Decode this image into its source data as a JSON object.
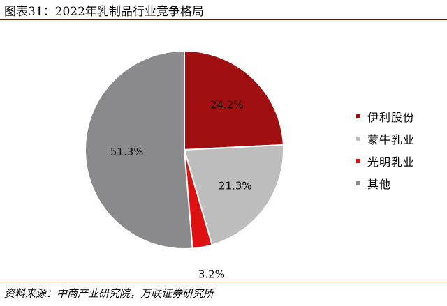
{
  "header": {
    "title": "图表31：2022年乳制品行业竞争格局"
  },
  "footer": {
    "source": "资料来源：中商产业研究院，万联证券研究所"
  },
  "chart_data": {
    "type": "pie",
    "title": "",
    "series": [
      {
        "name": "伊利股份",
        "value": 24.2,
        "label": "24.2%",
        "color": "#a01010"
      },
      {
        "name": "蒙牛乳业",
        "value": 21.3,
        "label": "21.3%",
        "color": "#bdbdbd"
      },
      {
        "name": "光明乳业",
        "value": 3.2,
        "label": "3.2%",
        "color": "#dd1111"
      },
      {
        "name": "其他",
        "value": 51.3,
        "label": "51.3%",
        "color": "#8a8a8c"
      }
    ],
    "legend": {
      "position": "right"
    },
    "start_angle": "12 o'clock",
    "direction": "clockwise"
  }
}
